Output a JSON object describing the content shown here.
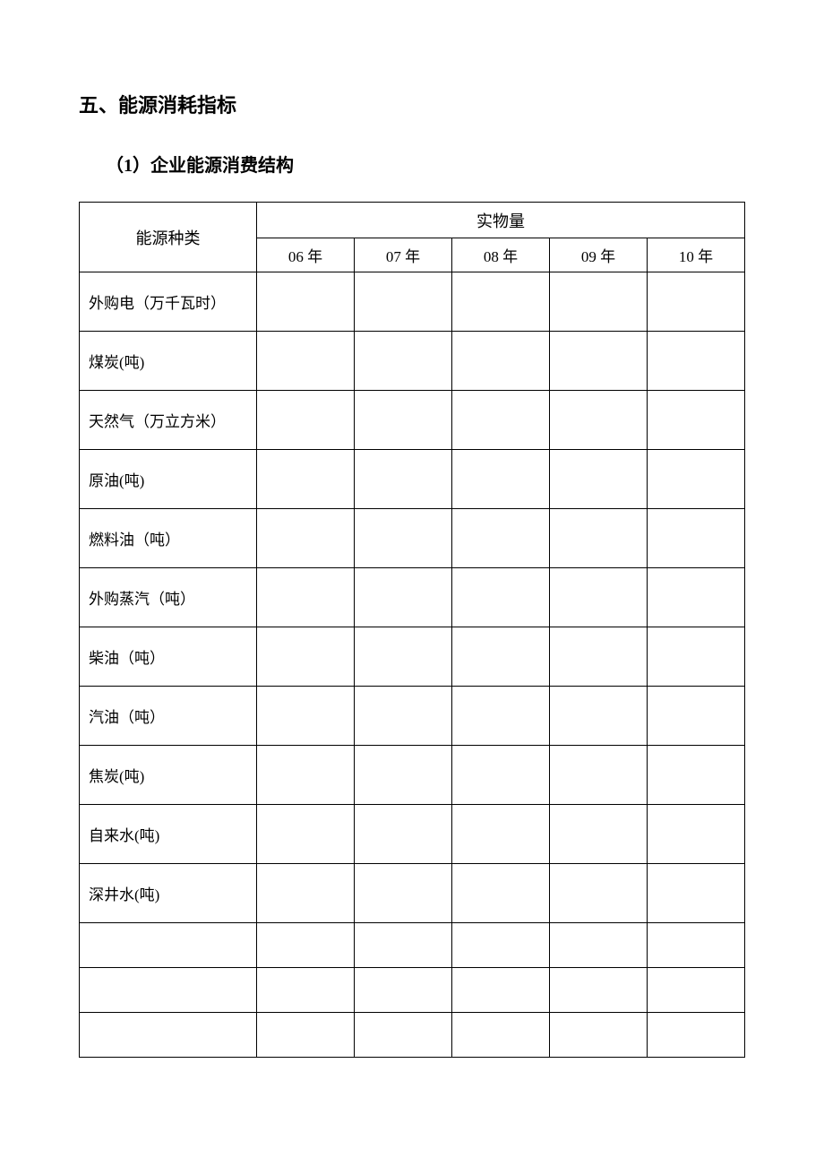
{
  "section": {
    "title": "五、能源消耗指标",
    "subsection": "（1）企业能源消费结构"
  },
  "table": {
    "header": {
      "category": "能源种类",
      "quantity": "实物量",
      "years": [
        "06 年",
        "07 年",
        "08 年",
        "09 年",
        "10 年"
      ]
    },
    "rows": [
      "外购电（万千瓦时）",
      "煤炭(吨)",
      "天然气（万立方米）",
      "原油(吨)",
      "燃料油（吨）",
      "外购蒸汽（吨）",
      "柴油（吨）",
      "汽油（吨）",
      "焦炭(吨)",
      "自来水(吨)",
      "深井水(吨)"
    ],
    "empty_rows": 3,
    "styling": {
      "border_color": "#000000",
      "background_color": "#ffffff",
      "text_color": "#000000",
      "title_fontsize": 22,
      "subsection_fontsize": 20,
      "header_fontsize": 18,
      "cell_fontsize": 17,
      "category_col_width": 198,
      "year_col_width": 109,
      "data_row_height": 66,
      "empty_row_height": 50,
      "header_top_height": 40,
      "header_bottom_height": 38
    }
  }
}
